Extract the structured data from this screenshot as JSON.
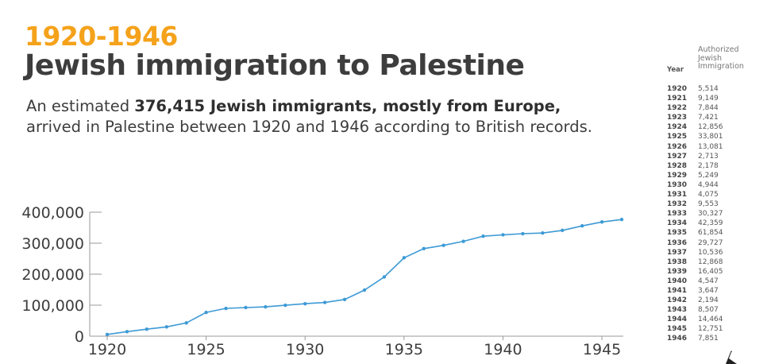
{
  "kicker": "1920-1946",
  "headline": "Jewish immigration to Palestine",
  "subhead": {
    "pre": "An estimated ",
    "bold": "376,415 Jewish immigrants, mostly from Europe,",
    "post": " arrived in Palestine between 1920 and 1946 according to British records."
  },
  "table": {
    "year_header": "Year",
    "value_header_lines": [
      "Authorized",
      "Jewish",
      "Immigration"
    ],
    "rows": [
      {
        "year": "1920",
        "value": "5,514"
      },
      {
        "year": "1921",
        "value": "9,149"
      },
      {
        "year": "1922",
        "value": "7,844"
      },
      {
        "year": "1923",
        "value": "7,421"
      },
      {
        "year": "1924",
        "value": "12,856"
      },
      {
        "year": "1925",
        "value": "33,801"
      },
      {
        "year": "1926",
        "value": "13,081"
      },
      {
        "year": "1927",
        "value": "2,713"
      },
      {
        "year": "1928",
        "value": "2,178"
      },
      {
        "year": "1929",
        "value": "5,249"
      },
      {
        "year": "1930",
        "value": "4,944"
      },
      {
        "year": "1931",
        "value": "4,075"
      },
      {
        "year": "1932",
        "value": "9,553"
      },
      {
        "year": "1933",
        "value": "30,327"
      },
      {
        "year": "1934",
        "value": "42,359"
      },
      {
        "year": "1935",
        "value": "61,854"
      },
      {
        "year": "1936",
        "value": "29,727"
      },
      {
        "year": "1937",
        "value": "10,536"
      },
      {
        "year": "1938",
        "value": "12,868"
      },
      {
        "year": "1939",
        "value": "16,405"
      },
      {
        "year": "1940",
        "value": "4,547"
      },
      {
        "year": "1941",
        "value": "3,647"
      },
      {
        "year": "1942",
        "value": "2,194"
      },
      {
        "year": "1943",
        "value": "8,507"
      },
      {
        "year": "1944",
        "value": "14,464"
      },
      {
        "year": "1945",
        "value": "12,751"
      },
      {
        "year": "1946",
        "value": "7,851"
      }
    ]
  },
  "chart_data": {
    "type": "line",
    "title": "",
    "xlabel": "",
    "ylabel": "",
    "xlim": [
      1919.2,
      1946
    ],
    "ylim": [
      0,
      400000
    ],
    "x_ticks": [
      1920,
      1925,
      1930,
      1935,
      1940,
      1945
    ],
    "y_ticks": [
      0,
      100000,
      200000,
      300000,
      400000
    ],
    "y_tick_labels": [
      "0",
      "100,000",
      "200,000",
      "300,000",
      "400,000"
    ],
    "grid": false,
    "legend": "none",
    "color": "#3d9ad6",
    "x": [
      1920,
      1921,
      1922,
      1923,
      1924,
      1925,
      1926,
      1927,
      1928,
      1929,
      1930,
      1931,
      1932,
      1933,
      1934,
      1935,
      1936,
      1937,
      1938,
      1939,
      1940,
      1941,
      1942,
      1943,
      1944,
      1945,
      1946
    ],
    "y": [
      5514,
      14663,
      22507,
      29928,
      42784,
      76585,
      89666,
      92379,
      94557,
      99806,
      104750,
      108825,
      118378,
      148705,
      191064,
      252918,
      282645,
      293181,
      306049,
      322454,
      327001,
      330648,
      332842,
      341349,
      355813,
      368564,
      376415
    ]
  }
}
